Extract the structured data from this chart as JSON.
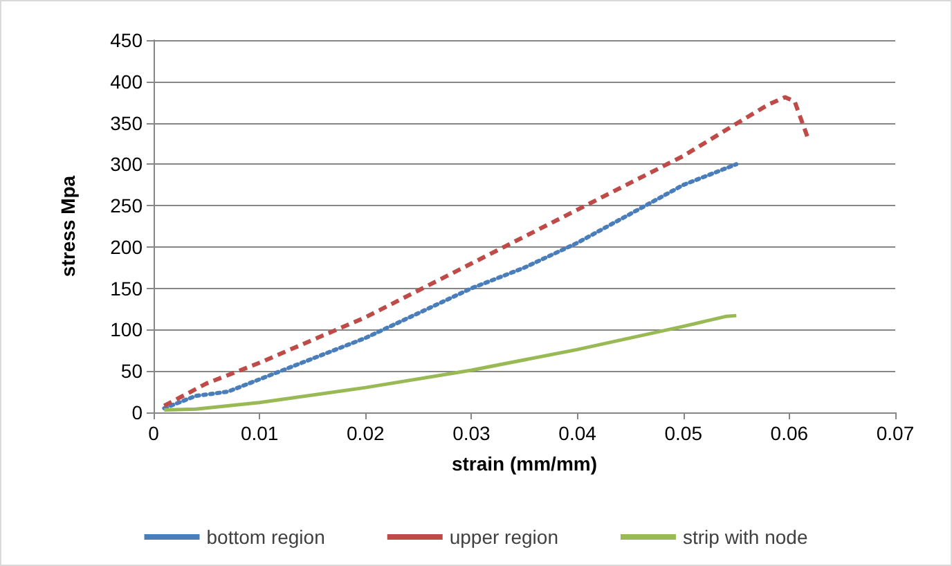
{
  "chart_data": {
    "type": "line",
    "xlabel": "strain (mm/mm)",
    "ylabel": "stress Mpa",
    "xlim": [
      0,
      0.07
    ],
    "xticks": [
      0,
      0.01,
      0.02,
      0.03,
      0.04,
      0.05,
      0.06,
      0.07
    ],
    "ylim": [
      0,
      450
    ],
    "yticks": [
      0,
      50,
      100,
      150,
      200,
      250,
      300,
      350,
      400,
      450
    ],
    "grid": "y",
    "legend": "bottom",
    "marker": "none",
    "series": [
      {
        "name": "bottom region",
        "color": "#4a7ebb",
        "line_style": "dotted",
        "x": [
          0.001,
          0.004,
          0.007,
          0.01,
          0.02,
          0.03,
          0.035,
          0.04,
          0.045,
          0.05,
          0.055
        ],
        "values": [
          5,
          20,
          25,
          40,
          90,
          150,
          175,
          205,
          240,
          275,
          300
        ]
      },
      {
        "name": "upper region",
        "color": "#be4b48",
        "line_style": "dashed",
        "x": [
          0.001,
          0.005,
          0.01,
          0.02,
          0.03,
          0.04,
          0.05,
          0.055,
          0.058,
          0.0596,
          0.0605,
          0.0618
        ],
        "values": [
          8,
          35,
          60,
          115,
          180,
          245,
          310,
          349,
          372,
          381,
          376,
          330
        ]
      },
      {
        "name": "strip with node",
        "color": "#98b954",
        "line_style": "solid",
        "x": [
          0.001,
          0.004,
          0.01,
          0.02,
          0.03,
          0.04,
          0.05,
          0.054,
          0.055
        ],
        "values": [
          3,
          4,
          12,
          30,
          51,
          76,
          104,
          116,
          117
        ]
      }
    ]
  }
}
